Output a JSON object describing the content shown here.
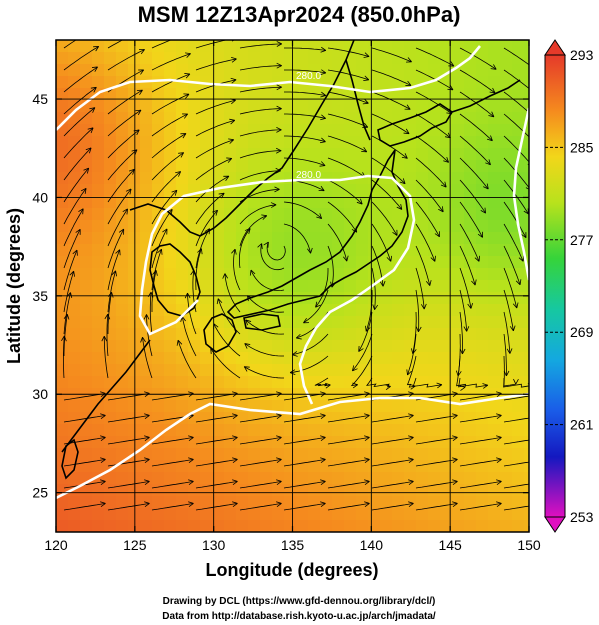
{
  "title": "MSM 12Z13Apr2024 (850.0hPa)",
  "chart_data": {
    "type": "heatmap",
    "title": "MSM 12Z13Apr2024 (850.0hPa)",
    "xlabel": "Longitude (degrees)",
    "ylabel": "Latitude  (degrees)",
    "xlim": [
      120,
      150
    ],
    "ylim": [
      23,
      48
    ],
    "x_ticks": [
      "120",
      "125",
      "130",
      "135",
      "140",
      "145",
      "150"
    ],
    "y_ticks": [
      "25",
      "30",
      "35",
      "40",
      "45"
    ],
    "grid": true,
    "colorbar": {
      "min": 253,
      "max": 293,
      "ticks": [
        "293",
        "285",
        "277",
        "269",
        "261",
        "253"
      ],
      "placement": "right"
    },
    "contours": [
      {
        "label": "280.0"
      },
      {
        "label": "280.0"
      }
    ],
    "overlay": "streamlines",
    "colors": {
      "warm": "#e8402a",
      "mid": "#d8e21c",
      "cool": "#3cd43a",
      "contour": "#ffffff",
      "coast": "#000000"
    }
  },
  "credits": {
    "line1": "Drawing by DCL (https://www.gfd-dennou.org/library/dcl/)",
    "line2": "Data from http://database.rish.kyoto-u.ac.jp/arch/jmadata/"
  }
}
